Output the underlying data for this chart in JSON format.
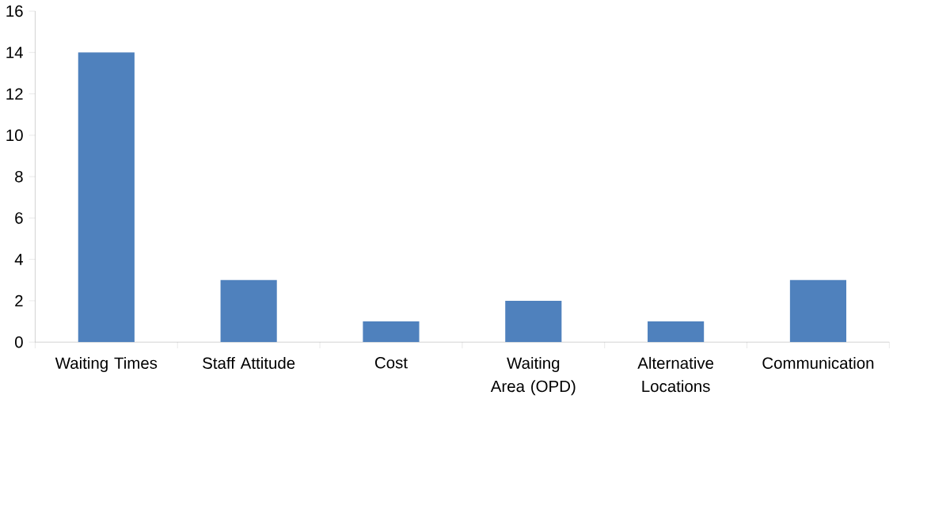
{
  "chart_data": {
    "type": "bar",
    "categories": [
      "Waiting Times",
      "Staff Attitude",
      "Cost",
      "Waiting Area (OPD)",
      "Alternative Locations",
      "Communication"
    ],
    "values": [
      14,
      3,
      1,
      2,
      1,
      3
    ],
    "color": "#4f81bd",
    "ylim": [
      0,
      16
    ],
    "yticks": [
      0,
      2,
      4,
      6,
      8,
      10,
      12,
      14,
      16
    ]
  }
}
